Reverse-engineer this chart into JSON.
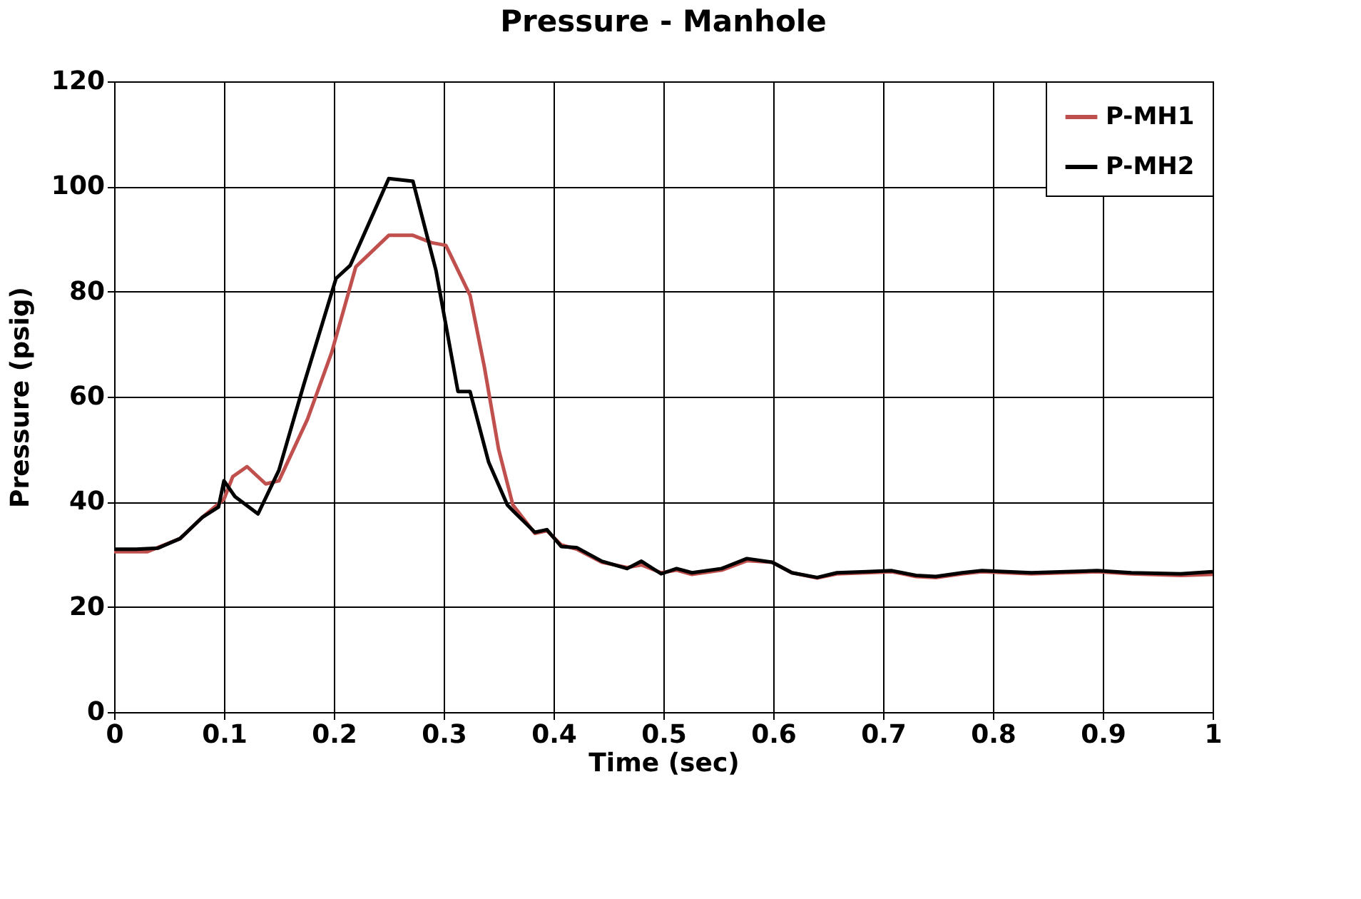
{
  "chart_data": {
    "type": "line",
    "title": "Pressure - Manhole",
    "xlabel": "Time (sec)",
    "ylabel": "Pressure (psig)",
    "xlim": [
      0,
      1
    ],
    "xticks": [
      0,
      0.1,
      0.2,
      0.3,
      0.4,
      0.5,
      0.6,
      0.7,
      0.8,
      0.9,
      1
    ],
    "ylim": [
      0,
      120
    ],
    "yticks": [
      0,
      20,
      40,
      60,
      80,
      100,
      120
    ],
    "grid": true,
    "legend": "top right",
    "marker": "none",
    "line_style": "solid",
    "series": [
      {
        "name": "P-MH1",
        "color": "#c0504d",
        "x": [
          0,
          0.03,
          0.06,
          0.08,
          0.1,
          0.108,
          0.121,
          0.138,
          0.15,
          0.176,
          0.198,
          0.22,
          0.25,
          0.272,
          0.289,
          0.302,
          0.324,
          0.337,
          0.35,
          0.363,
          0.383,
          0.394,
          0.407,
          0.421,
          0.444,
          0.467,
          0.48,
          0.498,
          0.512,
          0.526,
          0.553,
          0.576,
          0.599,
          0.617,
          0.64,
          0.658,
          0.685,
          0.708,
          0.73,
          0.748,
          0.772,
          0.79,
          0.835,
          0.895,
          0.926,
          0.971,
          1
        ],
        "values": [
          30.5,
          30.5,
          33,
          37,
          40.5,
          44.8,
          46.7,
          43.4,
          44,
          55.7,
          68.4,
          84.7,
          90.7,
          90.7,
          89.3,
          88.8,
          79.3,
          65.7,
          50,
          39.4,
          34,
          34.5,
          31.8,
          31,
          28.5,
          27.5,
          28,
          26.5,
          27,
          26.2,
          27,
          28.8,
          28.5,
          26.5,
          25.5,
          26.3,
          26.5,
          26.7,
          25.8,
          25.6,
          26.3,
          26.7,
          26.3,
          26.7,
          26.3,
          26,
          26.2
        ]
      },
      {
        "name": "P-MH2",
        "color": "#000000",
        "x": [
          0,
          0.02,
          0.04,
          0.06,
          0.08,
          0.095,
          0.1,
          0.11,
          0.131,
          0.15,
          0.1725,
          0.202,
          0.215,
          0.25,
          0.272,
          0.293,
          0.313,
          0.324,
          0.341,
          0.358,
          0.364,
          0.383,
          0.394,
          0.407,
          0.421,
          0.444,
          0.467,
          0.48,
          0.498,
          0.512,
          0.526,
          0.553,
          0.576,
          0.599,
          0.617,
          0.64,
          0.658,
          0.685,
          0.708,
          0.73,
          0.748,
          0.772,
          0.79,
          0.835,
          0.895,
          0.926,
          0.971,
          1
        ],
        "values": [
          31,
          31,
          31.2,
          33,
          37,
          39,
          44,
          41,
          37.7,
          46,
          62.2,
          82.5,
          85,
          101.5,
          101,
          84,
          61,
          61,
          47.5,
          39.4,
          38.1,
          34.2,
          34.7,
          31.5,
          31.3,
          28.7,
          27.3,
          28.7,
          26.3,
          27.3,
          26.5,
          27.3,
          29.2,
          28.5,
          26.5,
          25.6,
          26.5,
          26.7,
          26.9,
          26,
          25.8,
          26.5,
          26.9,
          26.5,
          26.9,
          26.5,
          26.3,
          26.7
        ]
      }
    ]
  }
}
